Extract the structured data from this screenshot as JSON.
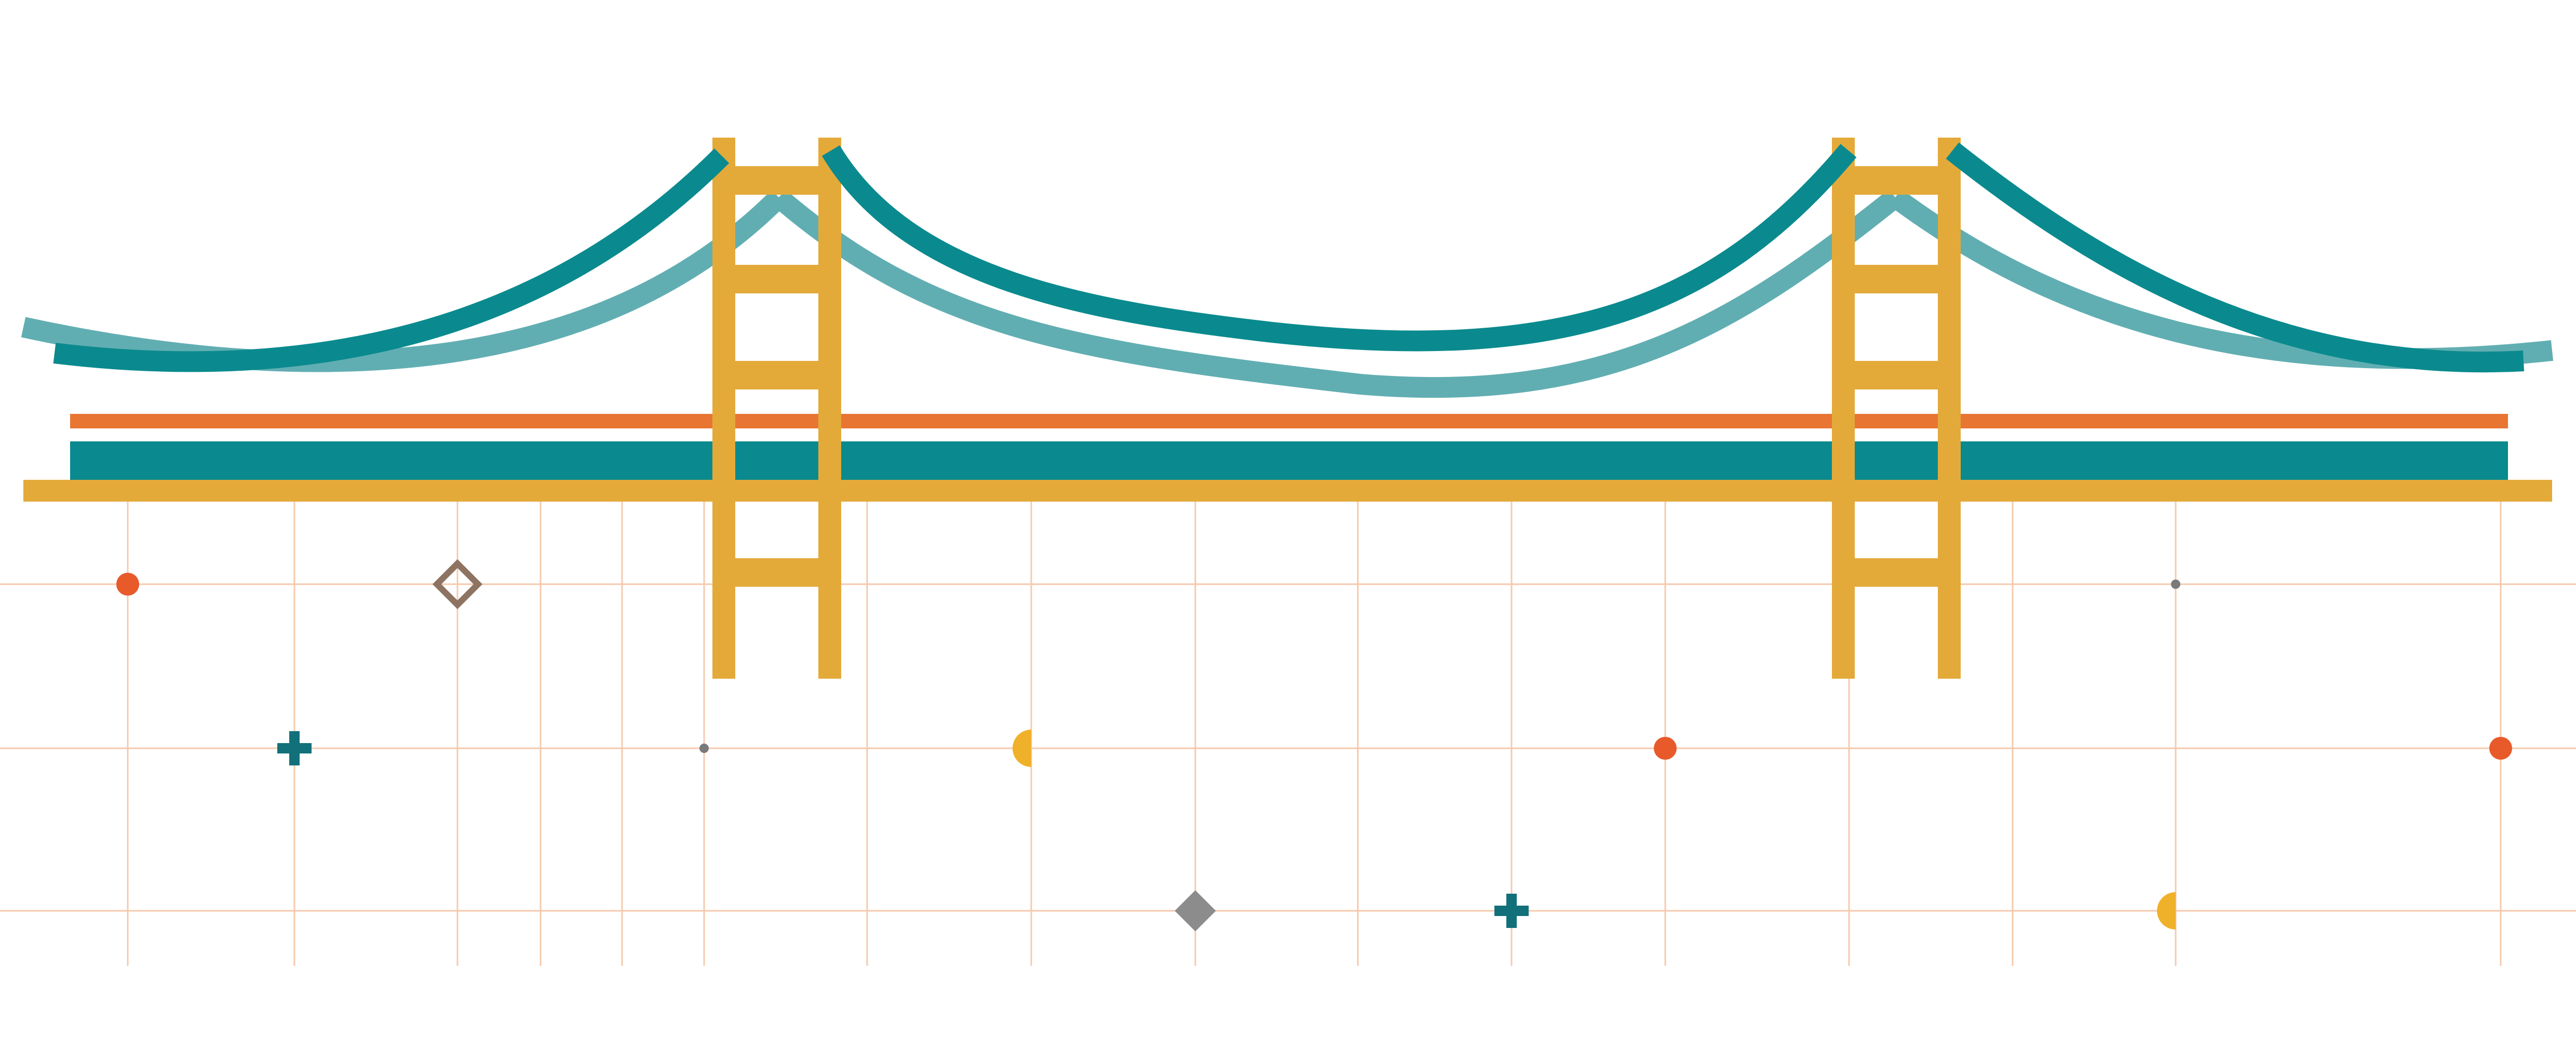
{
  "colors": {
    "background": "#ffffff",
    "tower": "#e3aa3a",
    "deck_stripe": "#e87532",
    "deck_main": "#0a8a8e",
    "cable_main": "#0a8a8e",
    "cable_light": "#61aeb2",
    "grid_line": "#f6c9ad",
    "dot_orange": "#e85a2a",
    "cross_teal": "#12707a",
    "half_circle_yellow": "#f0b12a",
    "diamond_brown": "#8e7362",
    "diamond_gray": "#8c8c8c",
    "small_dot_gray": "#7a7a7a"
  },
  "bridge": {
    "towers": 2,
    "ladder_rungs_per_tower": 6
  },
  "decorations": {
    "icons": [
      "orange-dot",
      "teal-cross",
      "brown-diamond-outline",
      "gray-diamond",
      "yellow-half-circle",
      "gray-small-dot"
    ]
  }
}
